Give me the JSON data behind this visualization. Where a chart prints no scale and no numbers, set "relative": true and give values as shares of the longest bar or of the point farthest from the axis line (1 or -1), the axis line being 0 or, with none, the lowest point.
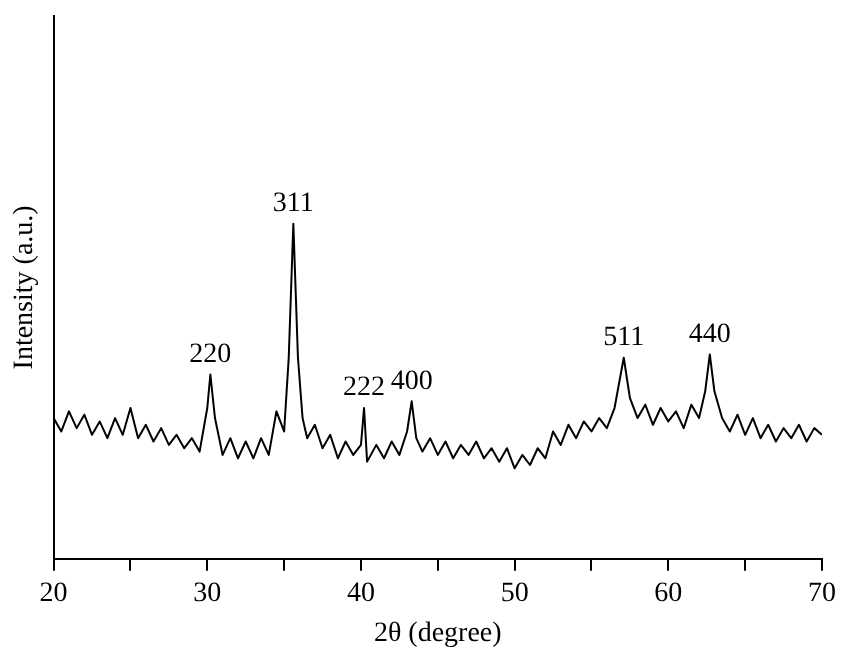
{
  "chart_data": {
    "type": "line",
    "relative": true,
    "xlabel": "2θ (degree)",
    "ylabel": "Intensity (a.u.)",
    "color": "#000000",
    "marker": "none",
    "grid": false,
    "legend": false,
    "xlim": [
      20,
      70
    ],
    "xticks": [
      20,
      {
        "value": 25,
        "label": null
      },
      30,
      {
        "value": 35,
        "label": null
      },
      40,
      {
        "value": 45,
        "label": null
      },
      50,
      {
        "value": 55,
        "label": null
      },
      60,
      {
        "value": 65,
        "label": null
      },
      70
    ],
    "x": [
      20,
      20.5,
      21,
      21.5,
      22,
      22.5,
      23,
      23.5,
      24,
      24.5,
      25,
      25.5,
      26,
      26.5,
      27,
      27.5,
      28,
      28.5,
      29,
      29.5,
      30,
      30.2,
      30.5,
      31,
      31.5,
      32,
      32.5,
      33,
      33.5,
      34,
      34.5,
      35,
      35.3,
      35.6,
      35.9,
      36.2,
      36.5,
      37,
      37.5,
      38,
      38.5,
      39,
      39.5,
      40,
      40.2,
      40.4,
      41,
      41.5,
      42,
      42.5,
      43,
      43.3,
      43.6,
      44,
      44.5,
      45,
      45.5,
      46,
      46.5,
      47,
      47.5,
      48,
      48.5,
      49,
      49.5,
      50,
      50.5,
      51,
      51.5,
      52,
      52.5,
      53,
      53.5,
      54,
      54.5,
      55,
      55.5,
      56,
      56.5,
      57.1,
      57.5,
      58,
      58.5,
      59,
      59.5,
      60,
      60.5,
      61,
      61.5,
      62,
      62.4,
      62.7,
      63,
      63.5,
      64,
      64.5,
      65,
      65.5,
      66,
      66.5,
      67,
      67.5,
      68,
      68.5,
      69,
      69.5,
      70
    ],
    "values": [
      0.42,
      0.38,
      0.44,
      0.39,
      0.43,
      0.37,
      0.41,
      0.36,
      0.42,
      0.37,
      0.45,
      0.36,
      0.4,
      0.35,
      0.39,
      0.34,
      0.37,
      0.33,
      0.36,
      0.32,
      0.45,
      0.55,
      0.42,
      0.31,
      0.36,
      0.3,
      0.35,
      0.3,
      0.36,
      0.31,
      0.44,
      0.38,
      0.6,
      1,
      0.6,
      0.42,
      0.36,
      0.4,
      0.33,
      0.37,
      0.3,
      0.35,
      0.31,
      0.34,
      0.45,
      0.29,
      0.34,
      0.3,
      0.35,
      0.31,
      0.38,
      0.47,
      0.36,
      0.32,
      0.36,
      0.31,
      0.35,
      0.3,
      0.34,
      0.31,
      0.35,
      0.3,
      0.33,
      0.29,
      0.33,
      0.27,
      0.31,
      0.28,
      0.33,
      0.3,
      0.38,
      0.34,
      0.4,
      0.36,
      0.41,
      0.38,
      0.42,
      0.39,
      0.45,
      0.6,
      0.48,
      0.42,
      0.46,
      0.4,
      0.45,
      0.41,
      0.44,
      0.39,
      0.46,
      0.42,
      0.5,
      0.61,
      0.5,
      0.42,
      0.38,
      0.43,
      0.37,
      0.42,
      0.36,
      0.4,
      0.35,
      0.39,
      0.36,
      0.4,
      0.35,
      0.39,
      0.37
    ],
    "annotations": [
      {
        "text": "220",
        "x": 30.2,
        "y": 0.55
      },
      {
        "text": "311",
        "x": 35.6,
        "y": 1
      },
      {
        "text": "222",
        "x": 40.2,
        "y": 0.45
      },
      {
        "text": "400",
        "x": 43.3,
        "y": 0.47
      },
      {
        "text": "511",
        "x": 57.1,
        "y": 0.6
      },
      {
        "text": "440",
        "x": 62.7,
        "y": 0.61
      }
    ]
  }
}
